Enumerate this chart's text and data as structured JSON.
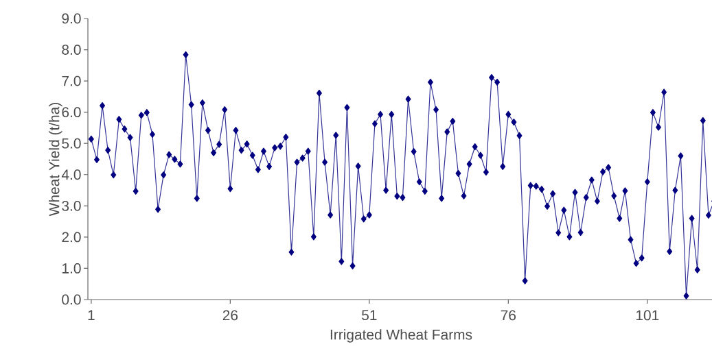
{
  "chart_data": {
    "type": "line",
    "xlabel": "Irrigated Wheat Farms",
    "ylabel": "Wheat Yield (t/ha)",
    "x": [
      1,
      2,
      3,
      4,
      5,
      6,
      7,
      8,
      9,
      10,
      11,
      12,
      13,
      14,
      15,
      16,
      17,
      18,
      19,
      20,
      21,
      22,
      23,
      24,
      25,
      26,
      27,
      28,
      29,
      30,
      31,
      32,
      33,
      34,
      35,
      36,
      37,
      38,
      39,
      40,
      41,
      42,
      43,
      44,
      45,
      46,
      47,
      48,
      49,
      50,
      51,
      52,
      53,
      54,
      55,
      56,
      57,
      58,
      59,
      60,
      61,
      62,
      63,
      64,
      65,
      66,
      67,
      68,
      69,
      70,
      71,
      72,
      73,
      74,
      75,
      76,
      77,
      78,
      79,
      80,
      81,
      82,
      83,
      84,
      85,
      86,
      87,
      88,
      89,
      90,
      91,
      92,
      93,
      94,
      95,
      96,
      97,
      98,
      99,
      100,
      101,
      102,
      103,
      104,
      105,
      106,
      107,
      108,
      109,
      110,
      111,
      112,
      113
    ],
    "series": [
      {
        "color": "#000080",
        "values": [
          5.14,
          4.48,
          6.21,
          4.78,
          3.99,
          5.77,
          5.46,
          5.19,
          3.47,
          5.9,
          5.99,
          5.29,
          2.89,
          3.99,
          4.64,
          4.49,
          4.34,
          7.84,
          6.24,
          3.24,
          6.3,
          5.42,
          4.7,
          4.97,
          6.08,
          3.55,
          5.42,
          4.78,
          4.98,
          4.62,
          4.16,
          4.75,
          4.26,
          4.86,
          4.91,
          5.2,
          1.52,
          4.4,
          4.53,
          4.75,
          2.01,
          6.61,
          4.4,
          2.71,
          5.26,
          1.22,
          6.15,
          1.08,
          4.27,
          2.58,
          2.71,
          5.63,
          5.93,
          3.5,
          5.93,
          3.31,
          3.27,
          6.42,
          4.74,
          3.77,
          3.47,
          6.96,
          6.08,
          3.24,
          5.37,
          5.71,
          4.04,
          3.32,
          4.34,
          4.89,
          4.62,
          4.08,
          7.11,
          6.96,
          4.26,
          5.93,
          5.68,
          5.25,
          0.6,
          3.65,
          3.63,
          3.53,
          2.99,
          3.39,
          2.14,
          2.86,
          2.01,
          3.43,
          2.15,
          3.27,
          3.83,
          3.15,
          4.09,
          4.23,
          3.32,
          2.6,
          3.48,
          1.92,
          1.16,
          1.33,
          3.77,
          5.99,
          5.52,
          6.64,
          1.54,
          3.5,
          4.6,
          0.12,
          2.6,
          0.95,
          5.73,
          2.7,
          3.15
        ]
      }
    ],
    "xlim": [
      0.4,
      113
    ],
    "xticks": [
      1,
      26,
      51,
      76,
      101
    ],
    "ylim": [
      0,
      9
    ],
    "yticks": [
      {
        "value": 0,
        "label": "0.0"
      },
      {
        "value": 1,
        "label": "1.0"
      },
      {
        "value": 2,
        "label": "2.0"
      },
      {
        "value": 3,
        "label": "3.0"
      },
      {
        "value": 4,
        "label": "4.0"
      },
      {
        "value": 5,
        "label": "5.0"
      },
      {
        "value": 6,
        "label": "6.0"
      },
      {
        "value": 7,
        "label": "7.0"
      },
      {
        "value": 8,
        "label": "8.0"
      },
      {
        "value": 9,
        "label": "9.0"
      }
    ],
    "marker": "diamond",
    "line_style": "solid",
    "grid": false,
    "legend": false
  }
}
